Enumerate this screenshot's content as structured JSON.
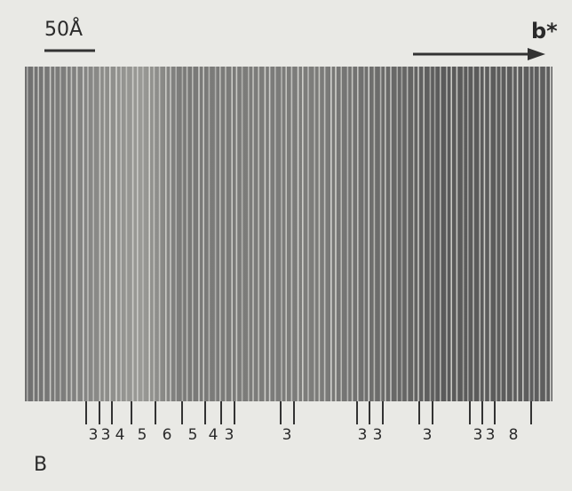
{
  "figure": {
    "panel_label": "B",
    "scale_bar_label": "50Å",
    "direction_label": "b*",
    "stripe_labels": [
      "3",
      "3",
      "4",
      "5",
      "6",
      "5",
      "4",
      "3",
      "3",
      "3",
      "3",
      "3",
      "3",
      "3",
      "8"
    ]
  }
}
